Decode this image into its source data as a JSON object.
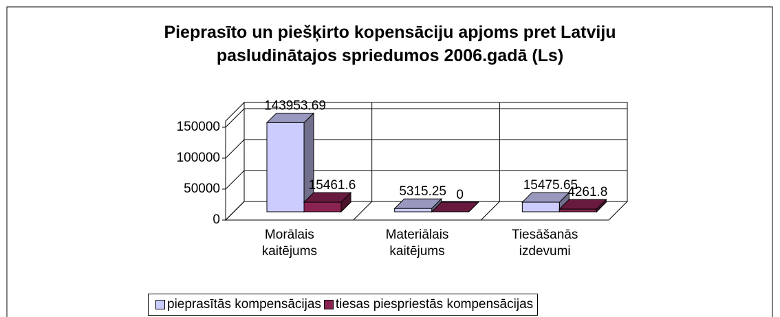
{
  "chart_data": {
    "type": "bar3d",
    "title": "Pieprasīto un piešķirto kopensāciju apjoms pret Latviju pasludinātajos spriedumos 2006.gadā (Ls)",
    "categories": [
      "Morālais kaitējums",
      "Materiālais kaitējums",
      "Tiesāšanās izdevumi"
    ],
    "series": [
      {
        "name": "pieprasītās kompensācijas",
        "color": "#ccccff",
        "values": [
          143953.69,
          5315.25,
          15475.65
        ]
      },
      {
        "name": "tiesas piespriestās kompensācijas",
        "color": "#8a2352",
        "values": [
          15461.6,
          0,
          4261.8
        ]
      }
    ],
    "ylim": [
      0,
      160000
    ],
    "yticks": [
      0,
      50000,
      100000,
      150000
    ],
    "grid": true,
    "legend": "bottom"
  }
}
